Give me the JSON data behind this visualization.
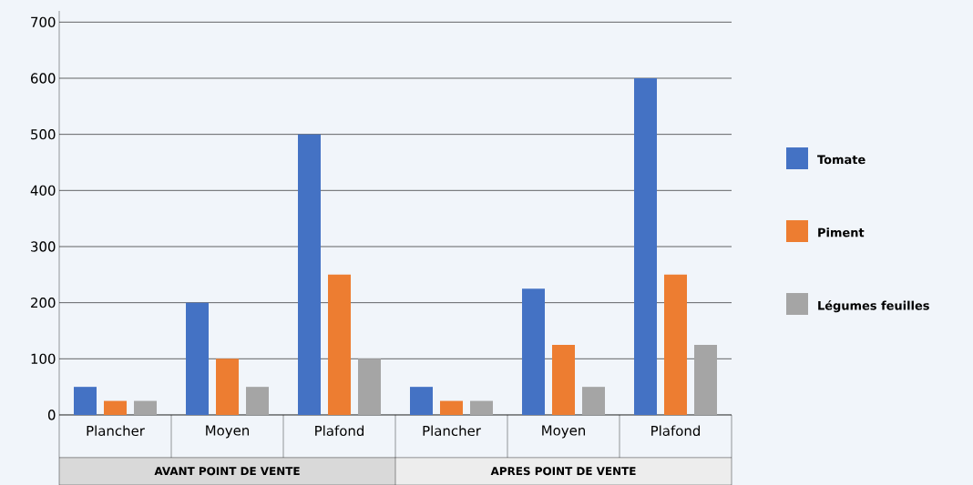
{
  "chart_data": {
    "type": "bar",
    "categories": [
      "Plancher",
      "Moyen",
      "Plafond",
      "Plancher",
      "Moyen",
      "Plafond"
    ],
    "series": [
      {
        "name": "Tomate",
        "color": "#4472c4",
        "values": [
          50,
          200,
          500,
          50,
          225,
          600
        ]
      },
      {
        "name": "Piment",
        "color": "#ed7d31",
        "values": [
          25,
          100,
          250,
          25,
          125,
          250
        ]
      },
      {
        "name": "Légumes feuilles",
        "color": "#a5a5a5",
        "values": [
          25,
          50,
          100,
          25,
          50,
          125
        ]
      }
    ],
    "annotations": [
      "AVANT POINT DE VENTE",
      "APRES POINT DE VENTE"
    ],
    "ylim": [
      0,
      720
    ],
    "yticks": [
      0,
      100,
      200,
      300,
      400,
      500,
      600,
      700
    ],
    "grid": "y",
    "legend": "right"
  }
}
